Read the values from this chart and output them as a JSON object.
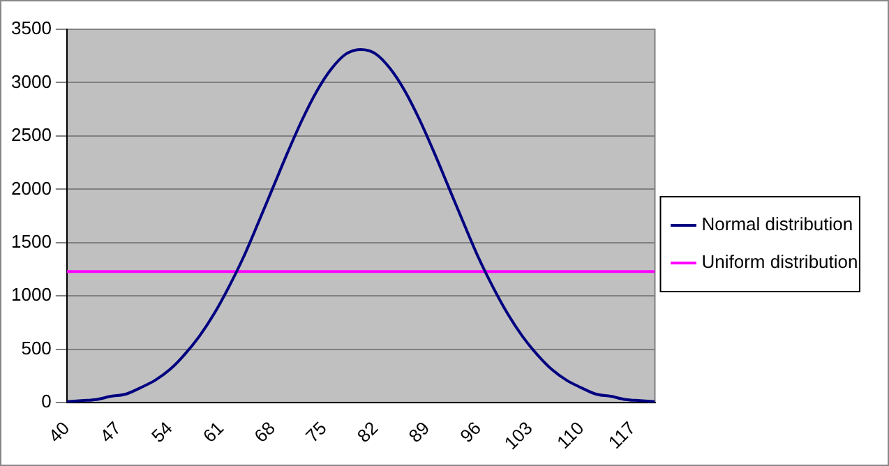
{
  "chart_data": {
    "type": "line",
    "x": [
      40,
      42,
      44,
      46,
      48,
      50,
      52,
      54,
      56,
      58,
      60,
      62,
      64,
      66,
      68,
      70,
      72,
      74,
      76,
      78,
      80,
      82,
      84,
      86,
      88,
      90,
      92,
      94,
      96,
      98,
      100,
      102,
      104,
      106,
      108,
      110,
      112,
      114,
      116,
      118,
      120
    ],
    "series": [
      {
        "name": "Normal distribution",
        "color": "#000080",
        "values": [
          10,
          20,
          30,
          60,
          80,
          140,
          210,
          310,
          450,
          620,
          830,
          1080,
          1360,
          1680,
          2010,
          2340,
          2650,
          2920,
          3130,
          3270,
          3310,
          3270,
          3130,
          2920,
          2650,
          2340,
          2010,
          1680,
          1360,
          1080,
          830,
          620,
          450,
          310,
          210,
          140,
          80,
          60,
          30,
          20,
          10
        ]
      },
      {
        "name": "Uniform distribution",
        "color": "#ff00ff",
        "values": [
          1230,
          1230,
          1230,
          1230,
          1230,
          1230,
          1230,
          1230,
          1230,
          1230,
          1230,
          1230,
          1230,
          1230,
          1230,
          1230,
          1230,
          1230,
          1230,
          1230,
          1230,
          1230,
          1230,
          1230,
          1230,
          1230,
          1230,
          1230,
          1230,
          1230,
          1230,
          1230,
          1230,
          1230,
          1230,
          1230,
          1230,
          1230,
          1230,
          1230,
          1230
        ]
      }
    ],
    "xlim": [
      40,
      120
    ],
    "xticks": [
      40,
      47,
      54,
      61,
      68,
      75,
      82,
      89,
      96,
      103,
      110,
      117
    ],
    "ylim": [
      0,
      3500
    ],
    "yticks": [
      0,
      500,
      1000,
      1500,
      2000,
      2500,
      3000,
      3500
    ],
    "grid": "y",
    "legend": "right",
    "marker": "none",
    "line_style": "solid"
  }
}
